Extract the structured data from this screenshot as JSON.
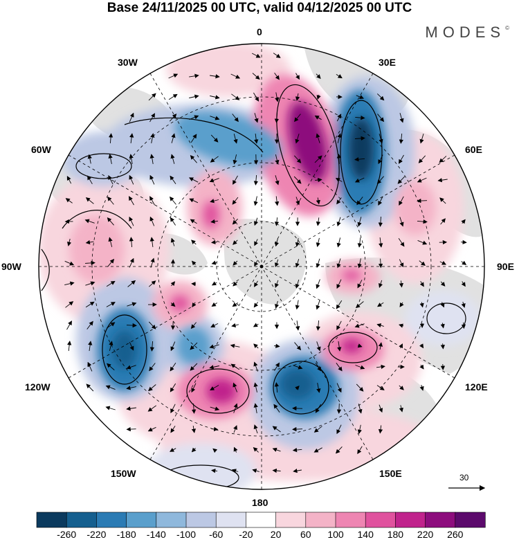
{
  "title": "Base 24/11/2025 00 UTC, valid 04/12/2025 00 UTC",
  "brand": {
    "name": "MODES",
    "mark": "©"
  },
  "longitude_labels": {
    "lon_0": "0",
    "lon_30e": "30E",
    "lon_60e": "60E",
    "lon_90e": "90E",
    "lon_120e": "120E",
    "lon_150e": "150E",
    "lon_180": "180",
    "lon_150w": "150W",
    "lon_120w": "120W",
    "lon_90w": "90W",
    "lon_60w": "60W",
    "lon_30w": "30W"
  },
  "reference_vector": {
    "value": "30"
  },
  "colorbar": {
    "levels": [
      "-260",
      "-220",
      "-180",
      "-140",
      "-100",
      "-60",
      "-20",
      "20",
      "60",
      "100",
      "140",
      "180",
      "220",
      "260"
    ],
    "colors": [
      "#0b3a5e",
      "#155f8f",
      "#2b7bb4",
      "#5a9fcc",
      "#8fb8dc",
      "#bcc8e4",
      "#dfe2f1",
      "#ffffff",
      "#f8d6de",
      "#f4b3c7",
      "#ee85b2",
      "#e0529e",
      "#c0238c",
      "#8d0d7d",
      "#5c0a6c"
    ]
  },
  "map": {
    "projection": "north polar stereographic",
    "field": "geopotential height anomaly with wind vectors",
    "colors": {
      "neg_strong": "#0b3a5e",
      "neg_mid": "#2b7bb4",
      "neg_weak": "#bcc8e4",
      "pos_weak": "#f8d6de",
      "pos_mid": "#ee85b2",
      "pos_strong": "#8d0d7d",
      "land": "#d9d9d9"
    }
  }
}
